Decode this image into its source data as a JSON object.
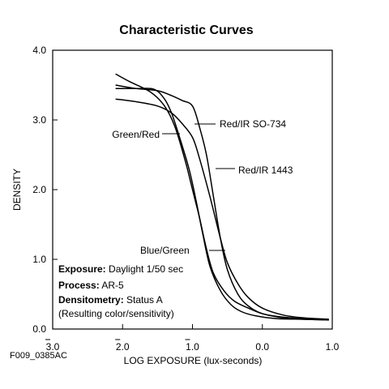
{
  "chart_data": {
    "type": "line",
    "title": "Characteristic Curves",
    "xlabel": "LOG EXPOSURE (lux-seconds)",
    "ylabel": "DENSITY",
    "xlim": [
      -3.0,
      1.0
    ],
    "ylim": [
      0.0,
      4.0
    ],
    "x_ticks": [
      -3,
      -2,
      -1,
      0,
      1
    ],
    "x_tick_labels": [
      "3.0",
      "2.0",
      "1.0",
      "0.0",
      "1.0"
    ],
    "x_tick_bars": [
      true,
      true,
      true,
      false,
      false
    ],
    "y_ticks": [
      0,
      1,
      2,
      3,
      4
    ],
    "y_tick_labels": [
      "0.0",
      "1.0",
      "2.0",
      "3.0",
      "4.0"
    ],
    "grid": false,
    "series": [
      {
        "name": "Red/IR SO-734",
        "x": [
          -2.1,
          -1.8,
          -1.5,
          -1.3,
          -1.15,
          -1.0,
          -0.9,
          -0.8,
          -0.7,
          -0.6,
          -0.5,
          -0.35,
          -0.2,
          0.0,
          0.3,
          0.6,
          0.95
        ],
        "y": [
          3.5,
          3.45,
          3.42,
          3.35,
          3.28,
          3.2,
          2.9,
          2.5,
          1.9,
          1.3,
          0.85,
          0.5,
          0.33,
          0.22,
          0.17,
          0.15,
          0.14
        ]
      },
      {
        "name": "Red/IR 1443",
        "x": [
          -2.1,
          -1.8,
          -1.5,
          -1.3,
          -1.15,
          -1.0,
          -0.9,
          -0.75,
          -0.6,
          -0.5,
          -0.35,
          -0.2,
          0.0,
          0.3,
          0.6,
          0.95
        ],
        "y": [
          3.3,
          3.26,
          3.2,
          3.1,
          2.95,
          2.75,
          2.45,
          1.9,
          1.3,
          0.95,
          0.65,
          0.45,
          0.3,
          0.2,
          0.16,
          0.14
        ]
      },
      {
        "name": "Green/Red",
        "x": [
          -2.1,
          -1.9,
          -1.6,
          -1.4,
          -1.25,
          -1.1,
          -1.0,
          -0.9,
          -0.8,
          -0.7,
          -0.55,
          -0.4,
          -0.2,
          0.0,
          0.3,
          0.6,
          0.95
        ],
        "y": [
          3.66,
          3.55,
          3.4,
          3.2,
          2.9,
          2.4,
          2.0,
          1.6,
          1.15,
          0.8,
          0.55,
          0.4,
          0.3,
          0.22,
          0.16,
          0.14,
          0.13
        ]
      },
      {
        "name": "Blue/Green",
        "x": [
          -2.1,
          -1.8,
          -1.55,
          -1.4,
          -1.3,
          -1.2,
          -1.05,
          -0.95,
          -0.85,
          -0.75,
          -0.6,
          -0.45,
          -0.3,
          -0.1,
          0.2,
          0.6,
          0.95
        ],
        "y": [
          3.45,
          3.45,
          3.44,
          3.3,
          3.1,
          2.8,
          2.3,
          1.85,
          1.35,
          0.9,
          0.55,
          0.35,
          0.25,
          0.19,
          0.15,
          0.14,
          0.13
        ]
      }
    ],
    "annotations": [
      {
        "key": "Exposure:",
        "value": " Daylight 1/50 sec"
      },
      {
        "key": "Process:",
        "value": " AR-5"
      },
      {
        "key": "Densitometry:",
        "value": " Status A"
      },
      {
        "key": "",
        "value": "(Resulting color/sensitivity)"
      }
    ],
    "figure_id": "F009_0385AC"
  }
}
